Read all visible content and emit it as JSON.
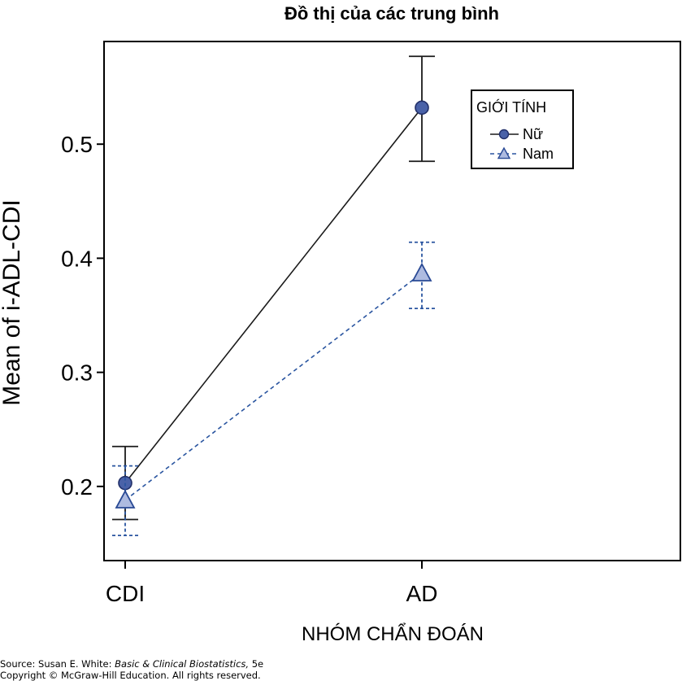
{
  "chart_data": {
    "type": "line",
    "title": "Đồ thị của các trung bình",
    "xlabel": "NHÓM CHẨN ĐOÁN",
    "ylabel": "Mean of i-ADL-CDI",
    "categories": [
      "CDI",
      "AD"
    ],
    "ylim": [
      0.135,
      0.59
    ],
    "yticks": [
      0.2,
      0.3,
      0.4,
      0.5
    ],
    "ytick_labels": [
      "0.2",
      "0.3",
      "0.4",
      "0.5"
    ],
    "grid": false,
    "legend": {
      "title": "GIỚI TÍNH",
      "position": "top-right"
    },
    "series": [
      {
        "name": "Nữ",
        "marker": "circle",
        "line": "solid",
        "line_color": "#1a1a1a",
        "marker_fill": "#4a62a8",
        "values": [
          0.203,
          0.532
        ],
        "error_low": [
          0.171,
          0.485
        ],
        "error_high": [
          0.235,
          0.577
        ]
      },
      {
        "name": "Nam",
        "marker": "triangle",
        "line": "dashed",
        "line_color": "#2a55a0",
        "marker_fill": "#aebbe0",
        "values": [
          0.188,
          0.387
        ],
        "error_low": [
          0.157,
          0.356
        ],
        "error_high": [
          0.218,
          0.414
        ]
      }
    ]
  },
  "source": {
    "prefix": "Source: Susan E. White: ",
    "book": "Basic & Clinical Biostatistics,",
    "edition": " 5e",
    "copyright": "Copyright © McGraw-Hill Education. All rights reserved."
  }
}
